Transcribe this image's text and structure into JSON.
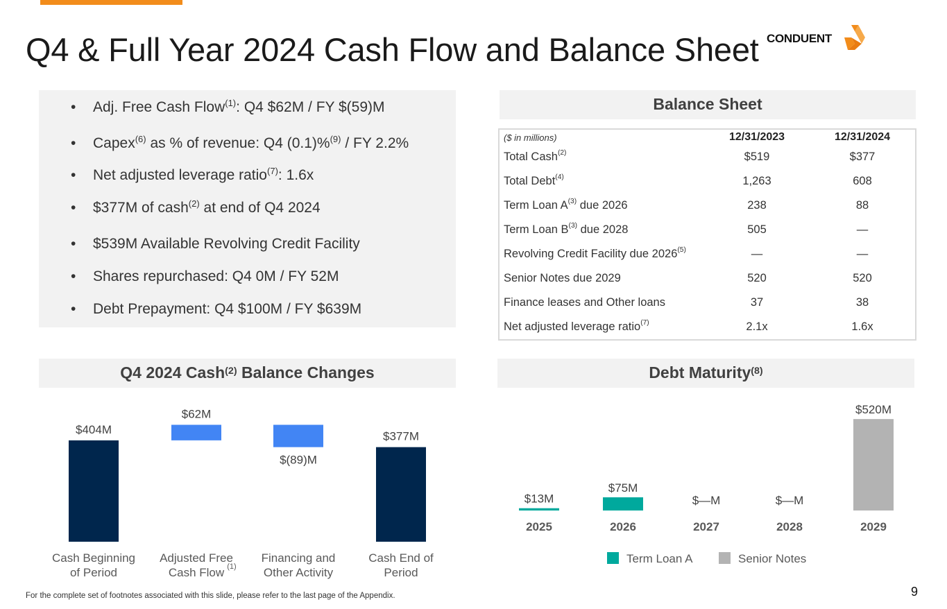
{
  "title": "Q4 & Full Year 2024 Cash Flow and Balance Sheet",
  "logo_text": "CONDUENT",
  "brand_colors": {
    "orange": "#f28c1b",
    "navy": "#00264d",
    "blue": "#4285f4",
    "teal": "#00a99d",
    "gray": "#b3b3b3"
  },
  "highlights": [
    {
      "pre": "Adj. Free Cash Flow",
      "sup1": "(1)",
      "mid": ": Q4 $62M / FY $(59)M",
      "sup2": "",
      "post": ""
    },
    {
      "pre": "Capex",
      "sup1": "(6)",
      "mid": " as % of revenue: Q4 (0.1)%",
      "sup2": "(9)",
      "post": " / FY 2.2%"
    },
    {
      "pre": "Net adjusted leverage ratio",
      "sup1": "(7)",
      "mid": ": 1.6x",
      "sup2": "",
      "post": ""
    },
    {
      "pre": "$377M of cash",
      "sup1": "(2)",
      "mid": " at end of Q4 2024",
      "sup2": "",
      "post": ""
    },
    {
      "pre": "$539M Available Revolving Credit Facility",
      "sup1": "",
      "mid": "",
      "sup2": "",
      "post": ""
    },
    {
      "pre": "Shares repurchased: Q4 0M / FY  52M",
      "sup1": "",
      "mid": "",
      "sup2": "",
      "post": ""
    },
    {
      "pre": "Debt Prepayment: Q4 $100M / FY $639M",
      "sup1": "",
      "mid": "",
      "sup2": "",
      "post": ""
    }
  ],
  "balance_sheet": {
    "heading": "Balance Sheet",
    "unit_note": "($ in millions)",
    "columns": [
      "12/31/2023",
      "12/31/2024"
    ],
    "rows": [
      {
        "label": "Total Cash",
        "sup": "(2)",
        "suffix": "",
        "values": [
          "$519",
          "$377"
        ]
      },
      {
        "label": "Total Debt",
        "sup": "(4)",
        "suffix": "",
        "values": [
          "1,263",
          "608"
        ]
      },
      {
        "label": "Term Loan A",
        "sup": "(3)",
        "suffix": " due 2026",
        "values": [
          "238",
          "88"
        ]
      },
      {
        "label": "Term Loan B",
        "sup": "(3)",
        "suffix": " due 2028",
        "values": [
          "505",
          "—"
        ]
      },
      {
        "label": "Revolving Credit Facility due 2026",
        "sup": "(5)",
        "suffix": "",
        "values": [
          "—",
          "—"
        ]
      },
      {
        "label": "Senior Notes due 2029",
        "sup": "",
        "suffix": "",
        "values": [
          "520",
          "520"
        ]
      },
      {
        "label": "Finance leases and Other loans",
        "sup": "",
        "suffix": "",
        "values": [
          "37",
          "38"
        ]
      },
      {
        "label": "Net adjusted leverage ratio",
        "sup": "(7)",
        "suffix": "",
        "values": [
          "2.1x",
          "1.6x"
        ]
      }
    ]
  },
  "cash_heading": {
    "pre": "Q4 2024 Cash",
    "sup": "(2)",
    "post": " Balance Changes"
  },
  "debt_heading": {
    "pre": "Debt Maturity",
    "sup": "(8)"
  },
  "chart_data": [
    {
      "type": "bar",
      "subtype": "waterfall",
      "categories": [
        "Cash Beginning\nof  Period",
        "Adjusted Free\nCash Flow",
        "Financing and\nOther Activity",
        "Cash End of\nPeriod"
      ],
      "category_sups": [
        "",
        "(1)",
        "",
        ""
      ],
      "values": [
        404,
        62,
        -89,
        377
      ],
      "kinds": [
        "total",
        "delta",
        "delta",
        "total"
      ],
      "data_labels": [
        "$404M",
        "$62M",
        "$(89)M",
        "$377M"
      ],
      "colors": [
        "#00264d",
        "#4285f4",
        "#4285f4",
        "#00264d"
      ],
      "ylim": [
        0,
        470
      ]
    },
    {
      "type": "bar",
      "subtype": "stacked",
      "categories": [
        "2025",
        "2026",
        "2027",
        "2028",
        "2029"
      ],
      "series": [
        {
          "name": "Term Loan A",
          "color": "#00a99d",
          "values": [
            13,
            75,
            0,
            0,
            0
          ]
        },
        {
          "name": "Senior Notes",
          "color": "#b3b3b3",
          "values": [
            0,
            0,
            0,
            0,
            520
          ]
        }
      ],
      "data_labels": [
        "$13M",
        "$75M",
        "$—M",
        "$—M",
        "$520M"
      ],
      "legend": "bottom",
      "ylim": [
        0,
        560
      ]
    }
  ],
  "footnote": "For the complete set of footnotes associated with this slide, please refer to the last page of the Appendix.",
  "page_number": "9"
}
